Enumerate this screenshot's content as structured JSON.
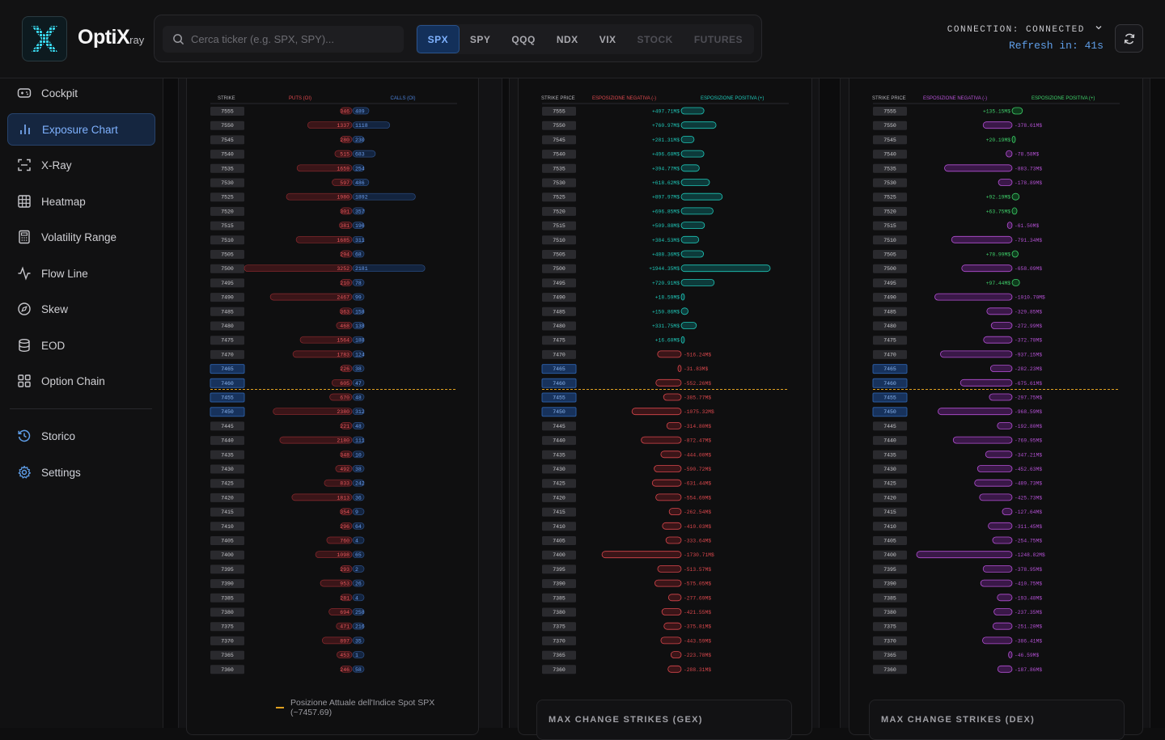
{
  "brand": {
    "name": "OptiX",
    "suffix": "ray"
  },
  "search": {
    "placeholder": "Cerca ticker (e.g. SPX, SPY)..."
  },
  "tickers": [
    "SPX",
    "SPY",
    "QQQ",
    "NDX",
    "VIX",
    "STOCK",
    "FUTURES"
  ],
  "active_ticker": "SPX",
  "status": {
    "connection": "CONNECTION: CONNECTED",
    "refresh": "Refresh in: 41s"
  },
  "sidebar": {
    "items": [
      {
        "label": "Cockpit",
        "icon": "gamepad-icon"
      },
      {
        "label": "Exposure Chart",
        "icon": "bar-chart-icon"
      },
      {
        "label": "X-Ray",
        "icon": "scan-icon"
      },
      {
        "label": "Heatmap",
        "icon": "grid-icon"
      },
      {
        "label": "Volatility Range",
        "icon": "calculator-icon"
      },
      {
        "label": "Flow Line",
        "icon": "activity-icon"
      },
      {
        "label": "Skew",
        "icon": "compass-icon"
      },
      {
        "label": "EOD",
        "icon": "database-icon"
      },
      {
        "label": "Option Chain",
        "icon": "layout-grid-icon"
      }
    ],
    "secondary": [
      {
        "label": "Storico",
        "icon": "history-icon"
      },
      {
        "label": "Settings",
        "icon": "gear-icon"
      }
    ]
  },
  "colors": {
    "put": "#e0474c",
    "call": "#4a7fd6",
    "positive": "#1fc7b8",
    "negative": "#d9474c",
    "dex_positive": "#3fd06a",
    "dex_negative": "#b451d4",
    "spot": "#e0a020",
    "accent": "#2f6fe0"
  },
  "spot": {
    "value": 7457.69
  },
  "chart_data": [
    {
      "type": "bar",
      "headers": [
        "STRIKE",
        "PUTS (OI)",
        "CALLS (OI)"
      ],
      "legend": "Posizione Attuale dell'Indice Spot SPX (~7457.69)",
      "strikes": [
        7555,
        7550,
        7545,
        7540,
        7535,
        7530,
        7525,
        7520,
        7515,
        7510,
        7505,
        7500,
        7495,
        7490,
        7485,
        7480,
        7475,
        7470,
        7465,
        7460,
        7455,
        7450,
        7445,
        7440,
        7435,
        7430,
        7425,
        7420,
        7415,
        7410,
        7405,
        7400,
        7395,
        7390,
        7385,
        7380,
        7375,
        7370,
        7365,
        7360
      ],
      "highlighted_strikes": [
        7465,
        7460,
        7455,
        7450
      ],
      "series": [
        {
          "name": "PUTS (OI)",
          "values": [
            346,
            1337,
            280,
            515,
            1659,
            597,
            1980,
            301,
            381,
            1685,
            294,
            3252,
            210,
            2467,
            363,
            468,
            1564,
            1783,
            226,
            605,
            670,
            2380,
            221,
            2180,
            348,
            492,
            833,
            1813,
            354,
            296,
            760,
            1098,
            293,
            953,
            281,
            694,
            471,
            897,
            453,
            246
          ]
        },
        {
          "name": "CALLS (OI)",
          "values": [
            489,
            1118,
            230,
            683,
            254,
            486,
            1892,
            357,
            196,
            311,
            68,
            2181,
            78,
            99,
            158,
            138,
            188,
            124,
            38,
            47,
            48,
            312,
            48,
            111,
            10,
            38,
            242,
            36,
            9,
            64,
            4,
            65,
            2,
            26,
            4,
            258,
            216,
            35,
            1,
            58
          ]
        }
      ]
    },
    {
      "type": "bar",
      "headers": [
        "STRIKE PRICE",
        "ESPOSIZIONE NEGATIVA (-)",
        "ESPOSIZIONE POSITIVA (+)"
      ],
      "strikes": [
        7555,
        7550,
        7545,
        7540,
        7535,
        7530,
        7525,
        7520,
        7515,
        7510,
        7505,
        7500,
        7495,
        7490,
        7485,
        7480,
        7475,
        7470,
        7465,
        7460,
        7455,
        7450,
        7445,
        7440,
        7435,
        7430,
        7425,
        7420,
        7415,
        7410,
        7405,
        7400,
        7395,
        7390,
        7385,
        7380,
        7375,
        7370,
        7365,
        7360
      ],
      "highlighted_strikes": [
        7465,
        7460,
        7455,
        7450
      ],
      "labels": [
        "+497.71M$",
        "+760.97M$",
        "+281.31M$",
        "+496.60M$",
        "+394.77M$",
        "+618.62M$",
        "+897.97M$",
        "+696.85M$",
        "+509.88M$",
        "+384.53M$",
        "+488.36M$",
        "+1944.35M$",
        "+720.91M$",
        "+18.59M$",
        "+150.86M$",
        "+331.75M$",
        "+16.60M$",
        "-516.24M$",
        "-31.83M$",
        "-552.26M$",
        "-385.77M$",
        "-1075.32M$",
        "-314.80M$",
        "-872.47M$",
        "-444.00M$",
        "-590.72M$",
        "-631.44M$",
        "-554.69M$",
        "-262.54M$",
        "-410.03M$",
        "-333.64M$",
        "-1730.71M$",
        "-513.57M$",
        "-575.05M$",
        "-277.69M$",
        "-421.55M$",
        "-375.81M$",
        "-443.59M$",
        "-223.78M$",
        "-288.31M$"
      ],
      "values": [
        497.71,
        760.97,
        281.31,
        496.6,
        394.77,
        618.62,
        897.97,
        696.85,
        509.88,
        384.53,
        488.36,
        1944.35,
        720.91,
        18.59,
        150.86,
        331.75,
        16.6,
        -516.24,
        -31.83,
        -552.26,
        -385.77,
        -1075.32,
        -314.8,
        -872.47,
        -444.0,
        -590.72,
        -631.44,
        -554.69,
        -262.54,
        -410.03,
        -333.64,
        -1730.71,
        -513.57,
        -575.05,
        -277.69,
        -421.55,
        -375.81,
        -443.59,
        -223.78,
        -288.31
      ],
      "footer": "MAX CHANGE STRIKES (GEX)"
    },
    {
      "type": "bar",
      "headers": [
        "STRIKE PRICE",
        "ESPOSIZIONE NEGATIVA (-)",
        "ESPOSIZIONE POSITIVA (+)"
      ],
      "strikes": [
        7555,
        7550,
        7545,
        7540,
        7535,
        7530,
        7525,
        7520,
        7515,
        7510,
        7505,
        7500,
        7495,
        7490,
        7485,
        7480,
        7475,
        7470,
        7465,
        7460,
        7455,
        7450,
        7445,
        7440,
        7435,
        7430,
        7425,
        7420,
        7415,
        7410,
        7405,
        7400,
        7395,
        7390,
        7385,
        7380,
        7375,
        7370,
        7365,
        7360
      ],
      "highlighted_strikes": [
        7465,
        7460,
        7455,
        7450
      ],
      "labels": [
        "+135.15M$",
        "-378.61M$",
        "+20.19M$",
        "-78.58M$",
        "-883.73M$",
        "-178.89M$",
        "+92.19M$",
        "+63.75M$",
        "-61.50M$",
        "-791.34M$",
        "+78.99M$",
        "-658.09M$",
        "+97.44M$",
        "-1010.70M$",
        "-329.85M$",
        "-272.99M$",
        "-372.78M$",
        "-937.15M$",
        "-282.23M$",
        "-675.61M$",
        "-297.75M$",
        "-968.59M$",
        "-192.80M$",
        "-769.95M$",
        "-347.21M$",
        "-452.63M$",
        "-489.73M$",
        "-425.73M$",
        "-127.64M$",
        "-311.45M$",
        "-254.75M$",
        "-1248.82M$",
        "-378.95M$",
        "-410.75M$",
        "-193.48M$",
        "-237.35M$",
        "-251.20M$",
        "-386.41M$",
        "-46.59M$",
        "-187.86M$"
      ],
      "values": [
        135.15,
        -378.61,
        20.19,
        -78.58,
        -883.73,
        -178.89,
        92.19,
        63.75,
        -61.5,
        -791.34,
        78.99,
        -658.09,
        97.44,
        -1010.7,
        -329.85,
        -272.99,
        -372.78,
        -937.15,
        -282.23,
        -675.61,
        -297.75,
        -968.59,
        -192.8,
        -769.95,
        -347.21,
        -452.63,
        -489.73,
        -425.73,
        -127.64,
        -311.45,
        -254.75,
        -1248.82,
        -378.95,
        -410.75,
        -193.48,
        -237.35,
        -251.2,
        -386.41,
        -46.59,
        -187.86
      ],
      "footer": "MAX CHANGE STRIKES (DEX)"
    }
  ]
}
